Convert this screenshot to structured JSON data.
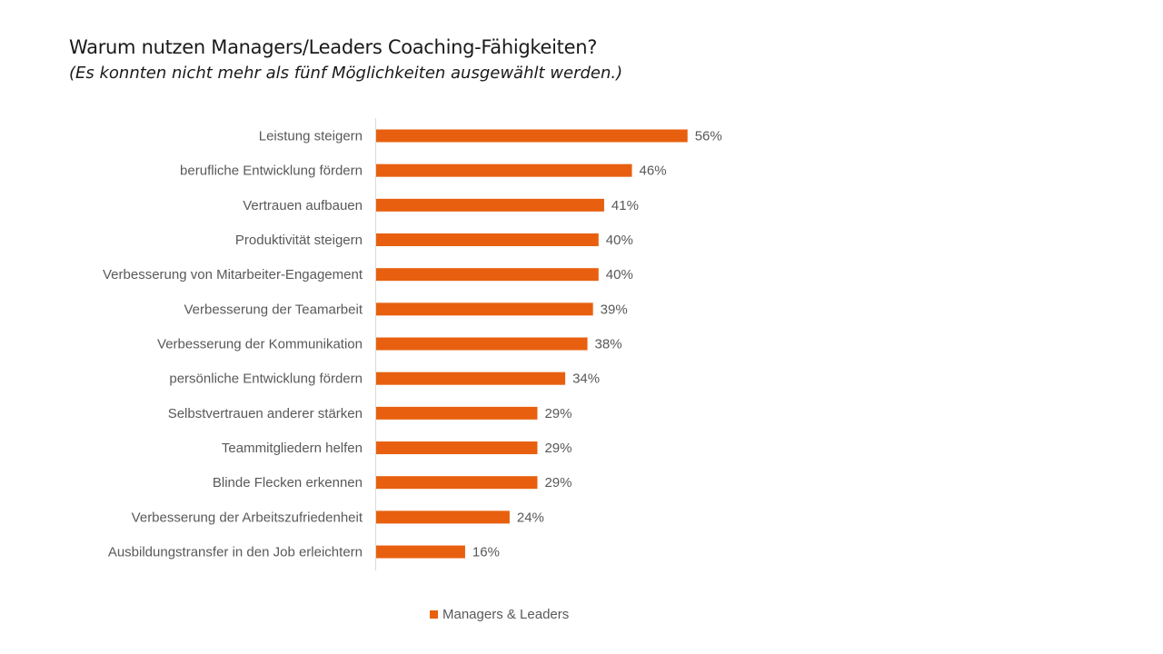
{
  "chart_data": {
    "type": "bar",
    "orientation": "horizontal",
    "title": "Warum nutzen Managers/Leaders Coaching-Fähigkeiten?",
    "subtitle": "(Es konnten nicht mehr als fünf Möglichkeiten ausgewählt werden.)",
    "categories": [
      "Leistung steigern",
      "berufliche Entwicklung fördern",
      "Vertrauen aufbauen",
      "Produktivität steigern",
      "Verbesserung von Mitarbeiter-Engagement",
      "Verbesserung der Teamarbeit",
      "Verbesserung der Kommunikation",
      "persönliche Entwicklung fördern",
      "Selbstvertrauen anderer stärken",
      "Teammitgliedern helfen ",
      "Blinde Flecken erkennen",
      "Verbesserung der Arbeitszufriedenheit",
      "Ausbildungstransfer in den Job erleichtern"
    ],
    "series": [
      {
        "name": "Managers & Leaders",
        "values": [
          56,
          46,
          41,
          40,
          40,
          39,
          38,
          34,
          29,
          29,
          29,
          24,
          16
        ],
        "labels": [
          "56%",
          "46%",
          "41%",
          "40%",
          "40%",
          "39%",
          "38%",
          "34%",
          "29%",
          "29%",
          "29%",
          "24%",
          "16%"
        ],
        "color": "#e8600f"
      }
    ],
    "xlim": [
      0,
      100
    ],
    "unit": "%",
    "grid": false,
    "legend_position": "bottom"
  }
}
